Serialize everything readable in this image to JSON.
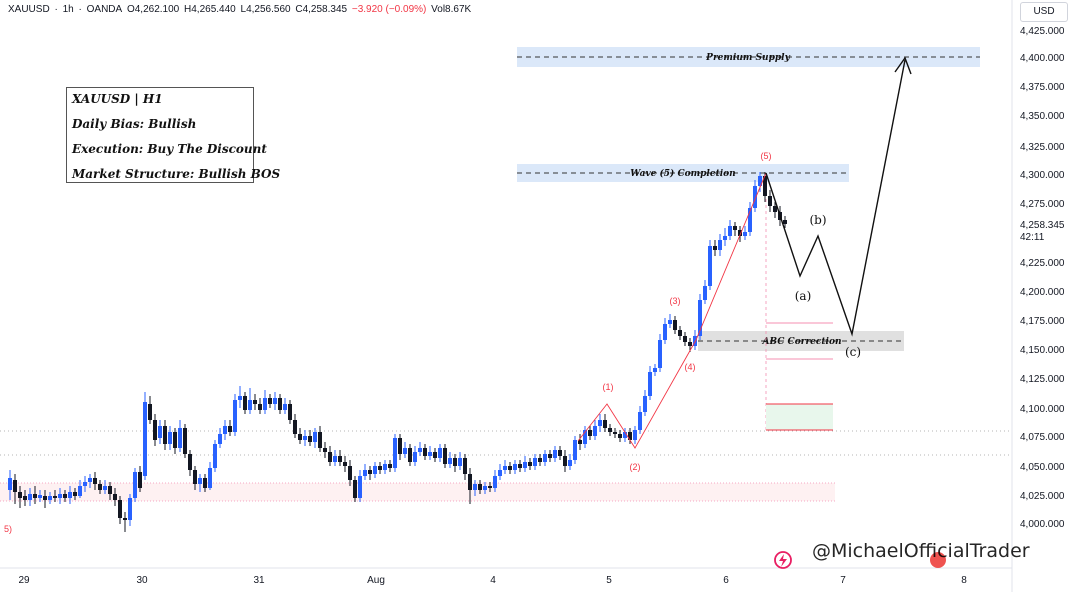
{
  "header": {
    "symbol": "XAUUSD",
    "separator": "·",
    "interval": "1h",
    "broker": "OANDA",
    "open": "O4,262.100",
    "high": "H4,265.440",
    "low": "L4,256.560",
    "close": "C4,258.345",
    "change": "−3.920 (−0.09%)",
    "volume": "Vol8.67K"
  },
  "info_box": {
    "line1": "XAUUSD | H1",
    "line2": "Daily Bias: Bullish",
    "line3": "Execution: Buy The Discount",
    "line4": "Market Structure: Bullish BOS"
  },
  "zones": {
    "premium": "Premium Supply",
    "wave5": "Wave (5) Completion",
    "abc": "ABC Correction"
  },
  "wave_labels": {
    "w1": "(1)",
    "w2": "(2)",
    "w3": "(3)",
    "w4": "(4)",
    "w5": "(5)",
    "wa": "(a)",
    "wb": "(b)",
    "wc": "(c)",
    "edge": "5)"
  },
  "price_axis": {
    "currency": "USD",
    "ticks": [
      "4,425.000",
      "4,400.000",
      "4,375.000",
      "4,350.000",
      "4,325.000",
      "4,300.000",
      "4,275.000",
      "4,225.000",
      "4,200.000",
      "4,175.000",
      "4,150.000",
      "4,125.000",
      "4,100.000",
      "4,075.000",
      "4,050.000",
      "4,025.000",
      "4,000.000"
    ],
    "current_price": "4,258.345",
    "countdown": "42:11"
  },
  "time_axis": {
    "ticks": [
      "29",
      "30",
      "31",
      "Aug",
      "4",
      "5",
      "6",
      "7",
      "8"
    ]
  },
  "watermark": "@MichaelOfficialTrader",
  "colors": {
    "bull": "#2962ff",
    "bear": "#131722",
    "zone_blue": "#dbe8f9",
    "zone_gray": "#e0e0e0",
    "wave_red": "#f23645",
    "accent": "#2962ff"
  },
  "icons": [
    "lightning-icon",
    "emoji-icon"
  ]
}
